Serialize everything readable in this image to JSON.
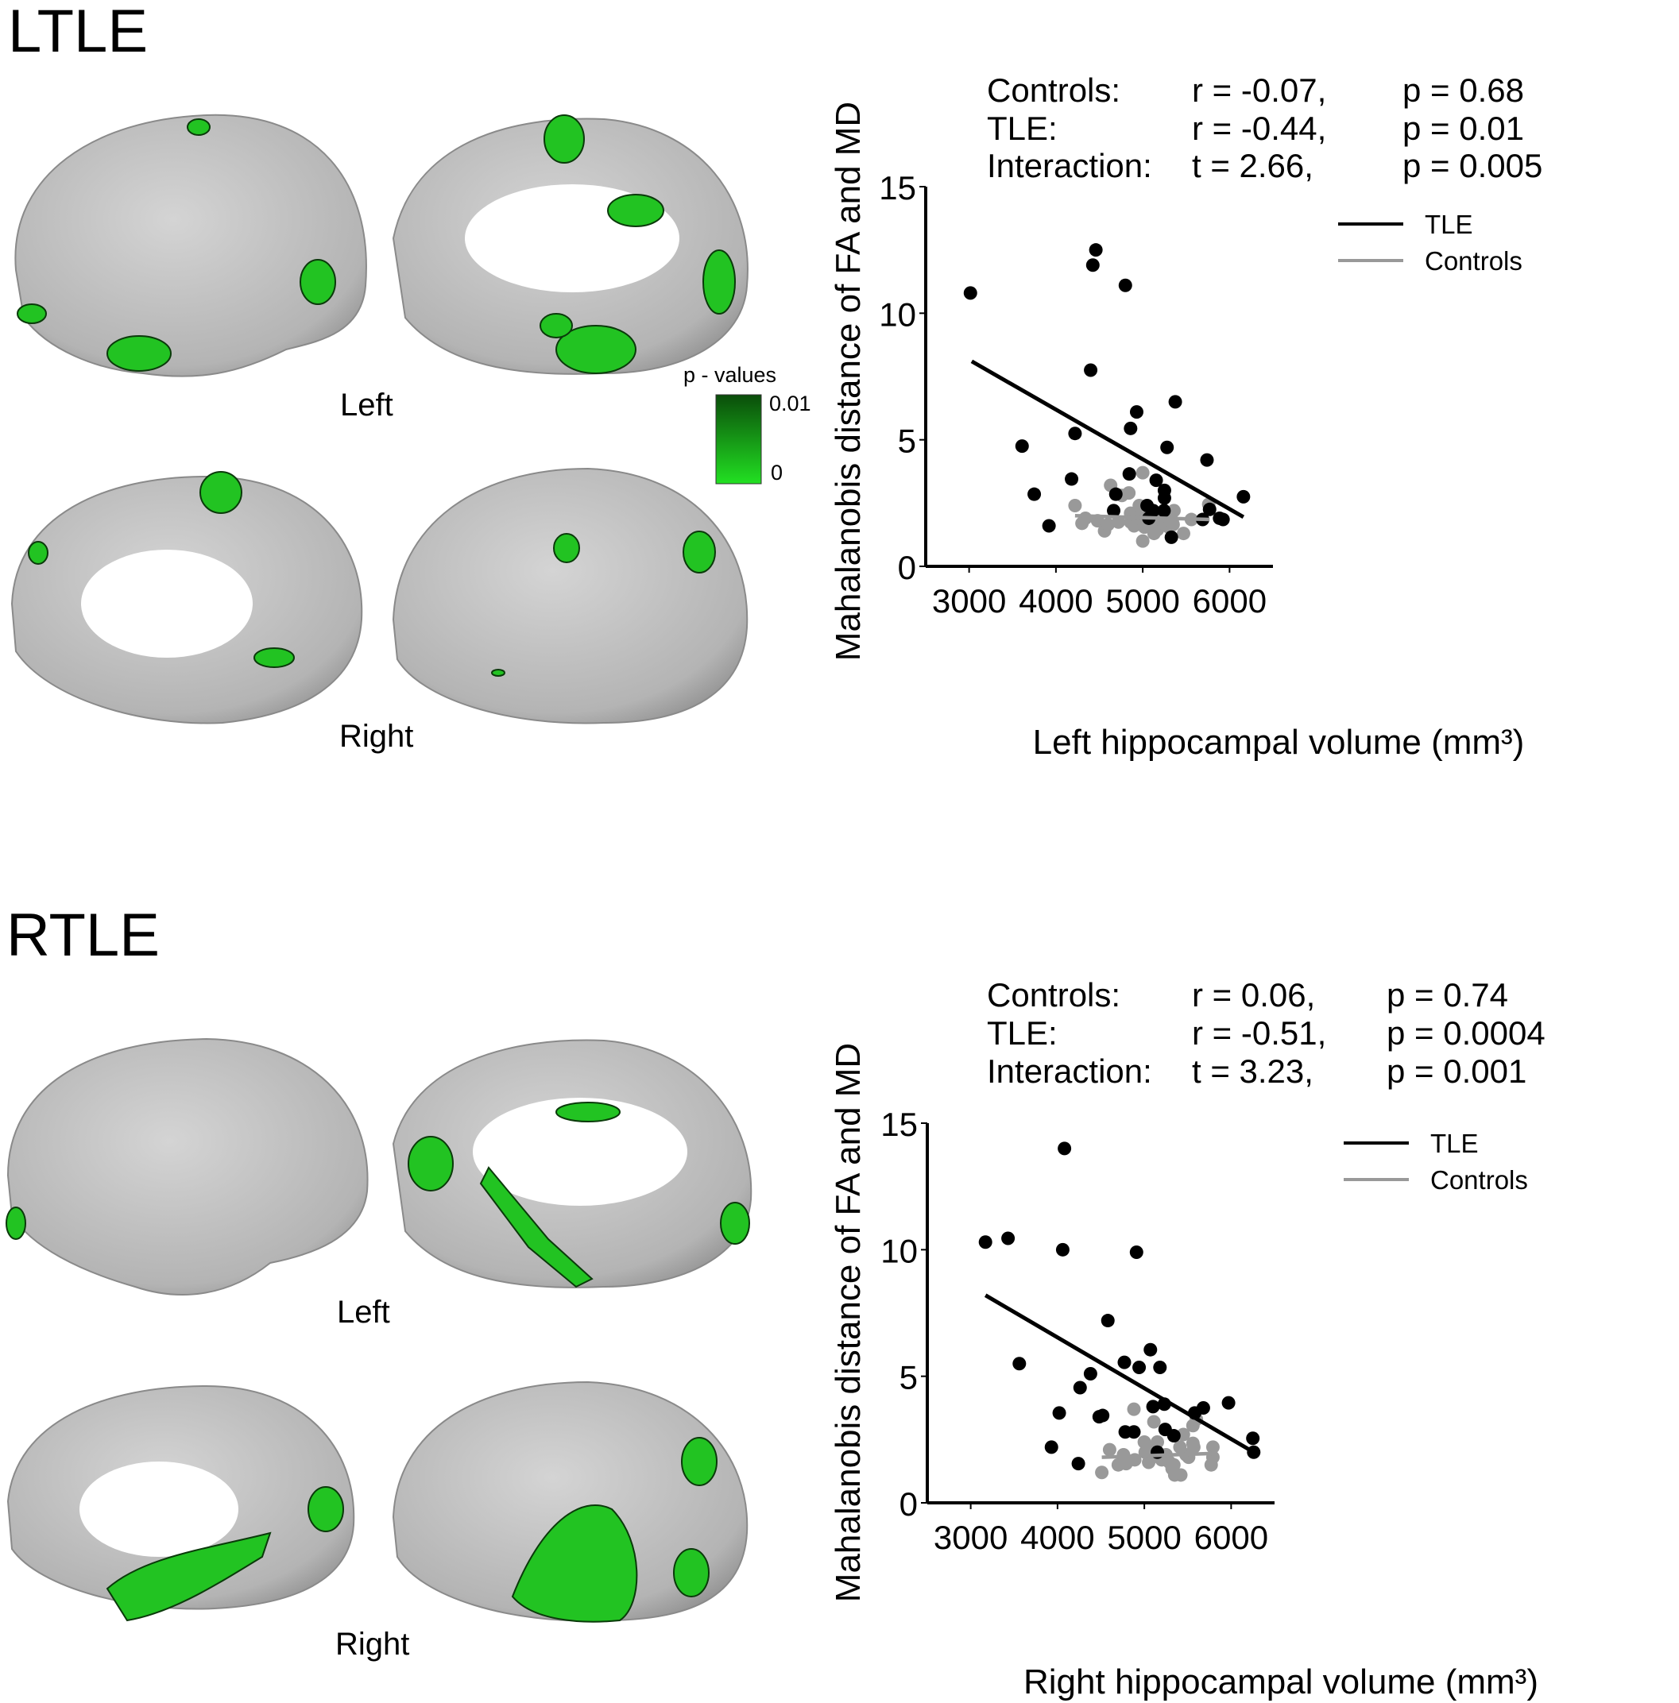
{
  "panels": [
    {
      "title": "LTLE",
      "stats": [
        {
          "label": "Controls:",
          "stat": "r = -0.07,",
          "p": "p = 0.68"
        },
        {
          "label": "TLE:",
          "stat": "r =  -0.44,",
          "p": "p = 0.01"
        },
        {
          "label": "Interaction:",
          "stat": "t =  2.66,",
          "p": "p = 0.005"
        }
      ],
      "hemispheres": [
        "Left",
        "Right"
      ],
      "colorbar": {
        "title": "p - values",
        "max_label": "0.01",
        "min_label": "0",
        "color_high": "#0a4d0a",
        "color_low": "#22e022"
      }
    },
    {
      "title": "RTLE",
      "stats": [
        {
          "label": "Controls:",
          "stat": "r = 0.06,",
          "p": "p = 0.74"
        },
        {
          "label": "TLE:",
          "stat": "r = -0.51,",
          "p": "p = 0.0004"
        },
        {
          "label": "Interaction:",
          "stat": "t = 3.23,",
          "p": "p = 0.001"
        }
      ],
      "hemispheres": [
        "Left",
        "Right"
      ]
    }
  ],
  "chart_data": [
    {
      "type": "scatter",
      "xlabel": "Left hippocampal volume (mm³)",
      "ylabel": "Mahalanobis distance of FA and MD",
      "xlim": [
        2500,
        6500
      ],
      "ylim": [
        0,
        15
      ],
      "xticks": [
        3000,
        4000,
        5000,
        6000
      ],
      "yticks": [
        0,
        5,
        10,
        15
      ],
      "legend": {
        "placement": "top-right",
        "entries": [
          "TLE",
          "Controls"
        ]
      },
      "series": [
        {
          "name": "TLE",
          "color": "#000000",
          "points": [
            [
              3015,
              10.8
            ],
            [
              4460,
              12.5
            ],
            [
              4425,
              11.9
            ],
            [
              4800,
              11.1
            ],
            [
              4400,
              7.75
            ],
            [
              5375,
              6.5
            ],
            [
              4930,
              6.1
            ],
            [
              4860,
              5.45
            ],
            [
              4220,
              5.25
            ],
            [
              3610,
              4.75
            ],
            [
              5280,
              4.7
            ],
            [
              5740,
              4.2
            ],
            [
              4845,
              3.65
            ],
            [
              4180,
              3.45
            ],
            [
              5155,
              3.4
            ],
            [
              3750,
              2.85
            ],
            [
              4690,
              2.85
            ],
            [
              5250,
              3.0
            ],
            [
              5250,
              2.7
            ],
            [
              6160,
              2.75
            ],
            [
              5050,
              2.4
            ],
            [
              5120,
              2.2
            ],
            [
              4665,
              2.2
            ],
            [
              5245,
              2.2
            ],
            [
              5770,
              2.25
            ],
            [
              5070,
              1.9
            ],
            [
              5690,
              1.85
            ],
            [
              5885,
              1.9
            ],
            [
              5925,
              1.85
            ],
            [
              3920,
              1.6
            ],
            [
              5330,
              1.15
            ]
          ],
          "fit": [
            [
              3030,
              8.1
            ],
            [
              6160,
              1.95
            ]
          ]
        },
        {
          "name": "Controls",
          "color": "#999999",
          "points": [
            [
              4220,
              2.4
            ],
            [
              4300,
              1.7
            ],
            [
              4340,
              1.9
            ],
            [
              4480,
              1.8
            ],
            [
              4560,
              1.4
            ],
            [
              4600,
              1.65
            ],
            [
              4630,
              3.2
            ],
            [
              4760,
              2.8
            ],
            [
              4720,
              1.75
            ],
            [
              4840,
              2.9
            ],
            [
              4860,
              2.1
            ],
            [
              4860,
              1.75
            ],
            [
              4900,
              1.6
            ],
            [
              4950,
              1.9
            ],
            [
              4960,
              2.4
            ],
            [
              5000,
              3.7
            ],
            [
              5000,
              1.9
            ],
            [
              5000,
              1.0
            ],
            [
              5020,
              1.55
            ],
            [
              5070,
              1.6
            ],
            [
              5090,
              2.0
            ],
            [
              5130,
              1.3
            ],
            [
              5140,
              2.1
            ],
            [
              5170,
              1.45
            ],
            [
              5200,
              1.65
            ],
            [
              5240,
              1.7
            ],
            [
              5270,
              2.0
            ],
            [
              5300,
              1.55
            ],
            [
              5340,
              1.8
            ],
            [
              5360,
              2.2
            ],
            [
              5350,
              1.65
            ],
            [
              5470,
              1.3
            ],
            [
              5560,
              1.85
            ],
            [
              5760,
              2.45
            ]
          ],
          "fit": [
            [
              4220,
              2.0
            ],
            [
              5770,
              1.85
            ]
          ]
        }
      ]
    },
    {
      "type": "scatter",
      "xlabel": "Right hippocampal volume (mm³)",
      "ylabel": "Mahalanobis distance of FA and MD",
      "xlim": [
        2500,
        6500
      ],
      "ylim": [
        0,
        15
      ],
      "xticks": [
        3000,
        4000,
        5000,
        6000
      ],
      "yticks": [
        0,
        5,
        10,
        15
      ],
      "legend": {
        "placement": "top-right",
        "entries": [
          "TLE",
          "Controls"
        ]
      },
      "series": [
        {
          "name": "TLE",
          "color": "#000000",
          "points": [
            [
              4080,
              14.0
            ],
            [
              3170,
              10.3
            ],
            [
              3430,
              10.45
            ],
            [
              4060,
              10.0
            ],
            [
              4910,
              9.9
            ],
            [
              4580,
              7.2
            ],
            [
              5070,
              6.05
            ],
            [
              3560,
              5.5
            ],
            [
              4770,
              5.55
            ],
            [
              4940,
              5.35
            ],
            [
              5180,
              5.35
            ],
            [
              4380,
              5.1
            ],
            [
              4260,
              4.55
            ],
            [
              5100,
              3.8
            ],
            [
              5230,
              3.9
            ],
            [
              5680,
              3.75
            ],
            [
              5970,
              3.95
            ],
            [
              5580,
              3.55
            ],
            [
              4020,
              3.55
            ],
            [
              4480,
              3.4
            ],
            [
              4520,
              3.45
            ],
            [
              4780,
              2.8
            ],
            [
              4880,
              2.8
            ],
            [
              5240,
              2.9
            ],
            [
              5340,
              2.65
            ],
            [
              6250,
              2.55
            ],
            [
              3930,
              2.2
            ],
            [
              5150,
              2.0
            ],
            [
              6260,
              2.0
            ],
            [
              4240,
              1.55
            ]
          ],
          "fit": [
            [
              3170,
              8.2
            ],
            [
              6260,
              2.0
            ]
          ]
        },
        {
          "name": "Controls",
          "color": "#999999",
          "points": [
            [
              4510,
              1.2
            ],
            [
              4600,
              2.1
            ],
            [
              4700,
              1.5
            ],
            [
              4760,
              1.9
            ],
            [
              4790,
              1.55
            ],
            [
              4880,
              3.7
            ],
            [
              4890,
              1.7
            ],
            [
              5000,
              2.4
            ],
            [
              5010,
              2.0
            ],
            [
              5050,
              1.6
            ],
            [
              5110,
              3.2
            ],
            [
              5110,
              2.1
            ],
            [
              5150,
              2.4
            ],
            [
              5170,
              1.8
            ],
            [
              5200,
              1.7
            ],
            [
              5250,
              1.9
            ],
            [
              5290,
              1.6
            ],
            [
              5320,
              1.35
            ],
            [
              5340,
              1.5
            ],
            [
              5350,
              1.1
            ],
            [
              5410,
              2.2
            ],
            [
              5420,
              1.1
            ],
            [
              5450,
              2.7
            ],
            [
              5480,
              1.9
            ],
            [
              5510,
              1.8
            ],
            [
              5560,
              3.05
            ],
            [
              5560,
              2.35
            ],
            [
              5570,
              2.2
            ],
            [
              5600,
              3.3
            ],
            [
              5770,
              1.5
            ],
            [
              5790,
              2.2
            ],
            [
              5790,
              1.8
            ]
          ],
          "fit": [
            [
              4510,
              1.8
            ],
            [
              5790,
              1.95
            ]
          ]
        }
      ]
    }
  ]
}
